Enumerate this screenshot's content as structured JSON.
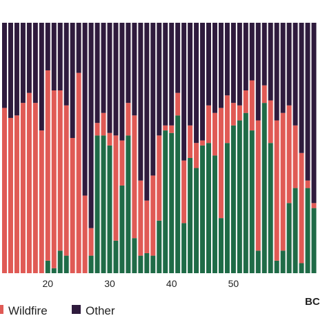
{
  "chart_data": {
    "type": "bar",
    "stacked": true,
    "normalized": true,
    "panel_label": "BC",
    "x_start": 13,
    "x_ticks": [
      20,
      30,
      40,
      50
    ],
    "ylim": [
      0,
      1
    ],
    "grid": false,
    "legend_position": "bottom",
    "series": [
      {
        "name": "",
        "color": "#1f6b47",
        "values": [
          0,
          0,
          0,
          0,
          0,
          0,
          0,
          0.05,
          0.02,
          0.09,
          0.07,
          0,
          0,
          0,
          0.07,
          0.55,
          0.55,
          0.51,
          0.13,
          0.35,
          0.55,
          0.14,
          0.07,
          0.08,
          0.07,
          0.21,
          0.57,
          0.56,
          0.63,
          0.2,
          0.46,
          0.42,
          0.51,
          0.52,
          0.47,
          0.22,
          0.52,
          0.59,
          0.61,
          0.64,
          0.57,
          0.09,
          0.68,
          0.52,
          0.05,
          0.09,
          0.28,
          0.34,
          0.04,
          0.34,
          0.26
        ]
      },
      {
        "name": "Wildfire",
        "color": "#e05a55",
        "values": [
          0.66,
          0.62,
          0.63,
          0.68,
          0.72,
          0.68,
          0.57,
          0.76,
          0.71,
          0.64,
          0.6,
          0.54,
          0.8,
          0.31,
          0.11,
          0.05,
          0.09,
          0.05,
          0.42,
          0.18,
          0.13,
          0.49,
          0.3,
          0.21,
          0.32,
          0.34,
          0.02,
          0.03,
          0.09,
          0.25,
          0.13,
          0.1,
          0.02,
          0.15,
          0.17,
          0.44,
          0.19,
          0.09,
          0.06,
          0.09,
          0.2,
          0.52,
          0.07,
          0.17,
          0.56,
          0.55,
          0.39,
          0.25,
          0.44,
          0.03,
          0.02
        ]
      },
      {
        "name": "Other",
        "color": "#2f1b3d",
        "values": [
          0.34,
          0.38,
          0.37,
          0.32,
          0.28,
          0.32,
          0.43,
          0.19,
          0.27,
          0.27,
          0.33,
          0.46,
          0.2,
          0.69,
          0.82,
          0.4,
          0.36,
          0.44,
          0.45,
          0.47,
          0.32,
          0.37,
          0.63,
          0.71,
          0.61,
          0.45,
          0.41,
          0.41,
          0.28,
          0.55,
          0.41,
          0.48,
          0.47,
          0.33,
          0.36,
          0.34,
          0.29,
          0.32,
          0.33,
          0.27,
          0.23,
          0.39,
          0.25,
          0.31,
          0.39,
          0.36,
          0.33,
          0.41,
          0.52,
          0.63,
          0.72
        ]
      }
    ]
  },
  "legend": {
    "items": [
      {
        "label": "Wildfire",
        "color": "#e05a55"
      },
      {
        "label": "Other",
        "color": "#2f1b3d"
      }
    ]
  }
}
